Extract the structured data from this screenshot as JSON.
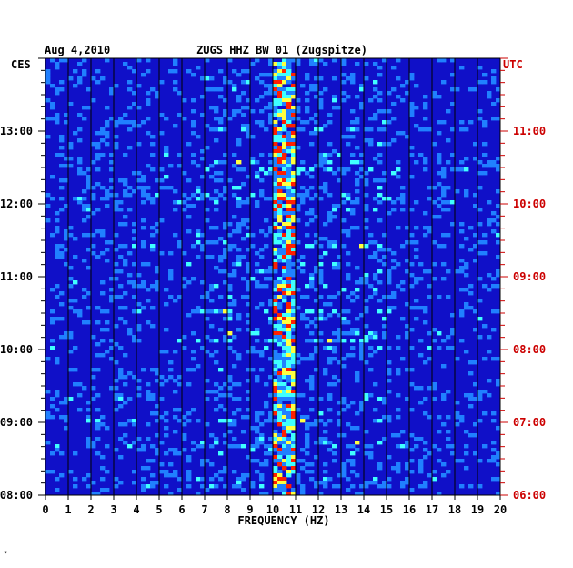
{
  "chart_data": {
    "type": "heatmap",
    "title": "ZUGS HHZ BW 01 (Zugspitze)",
    "date": "Aug 4,2010",
    "left_zone_label": "CES",
    "right_zone_label": "UTC",
    "xlabel": "FREQUENCY (HZ)",
    "xlim": [
      0,
      20
    ],
    "x_ticks": [
      "0",
      "1",
      "2",
      "3",
      "4",
      "5",
      "6",
      "7",
      "8",
      "9",
      "10",
      "11",
      "12",
      "13",
      "14",
      "15",
      "16",
      "17",
      "18",
      "19",
      "20"
    ],
    "y_range_local": [
      "08:00",
      "14:00"
    ],
    "left_y_ticks": [
      {
        "label": "13:00",
        "hour": 13
      },
      {
        "label": "12:00",
        "hour": 12
      },
      {
        "label": "11:00",
        "hour": 11
      },
      {
        "label": "10:00",
        "hour": 10
      },
      {
        "label": "09:00",
        "hour": 9
      },
      {
        "label": "08:00",
        "hour": 8
      }
    ],
    "right_y_ticks": [
      {
        "label": "11:00",
        "hour": 13
      },
      {
        "label": "10:00",
        "hour": 12
      },
      {
        "label": "09:00",
        "hour": 11
      },
      {
        "label": "08:00",
        "hour": 10
      },
      {
        "label": "07:00",
        "hour": 9
      },
      {
        "label": "06:00",
        "hour": 8
      }
    ],
    "dominant_band_hz": [
      10.0,
      11.0
    ],
    "colors": {
      "background": "#1010c8",
      "low": "#0000a0",
      "mid": "#2080ff",
      "high": "#40ffff",
      "peak": "#ffff40",
      "max": "#ff2000",
      "right_axis": "#cc0000",
      "left_axis": "#000000"
    }
  },
  "footer_mark": "*"
}
